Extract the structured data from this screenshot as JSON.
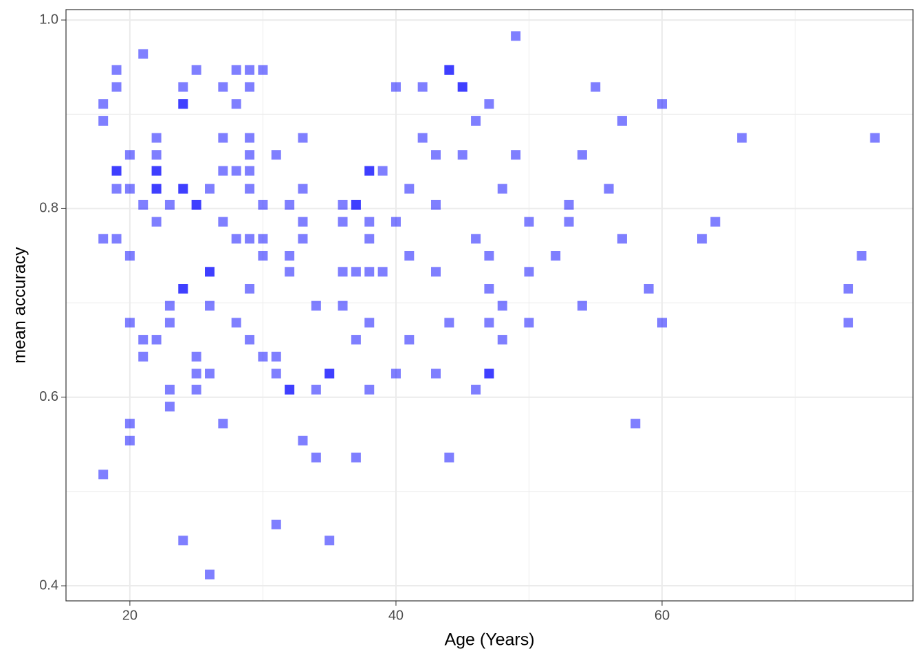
{
  "chart_data": {
    "type": "scatter",
    "x_label": "Age (Years)",
    "y_label": "mean accuracy",
    "color": "#0000ff",
    "opacity": 0.5,
    "marker": "square",
    "grid": true,
    "xlim": [
      15.2,
      78.86
    ],
    "ylim": [
      0.384,
      1.011
    ],
    "xticks": [
      20,
      40,
      60
    ],
    "yticks": [
      0.4,
      0.6,
      0.8,
      {
        "value": 1.0,
        "label": "1.0"
      }
    ],
    "x_minor_grid": [
      30,
      50,
      70
    ],
    "y_minor_grid": [
      0.5,
      0.7,
      0.9
    ],
    "x": [
      18,
      18,
      18,
      18,
      19,
      19,
      19,
      19,
      19,
      19,
      20,
      20,
      20,
      20,
      20,
      20,
      21,
      21,
      21,
      21,
      22,
      22,
      22,
      22,
      22,
      22,
      22,
      22,
      23,
      23,
      23,
      23,
      23,
      24,
      24,
      24,
      24,
      24,
      24,
      24,
      24,
      25,
      25,
      25,
      25,
      25,
      25,
      26,
      26,
      26,
      26,
      26,
      26,
      27,
      27,
      27,
      27,
      27,
      28,
      28,
      28,
      28,
      28,
      29,
      29,
      29,
      29,
      29,
      29,
      29,
      29,
      29,
      30,
      30,
      30,
      30,
      30,
      31,
      31,
      31,
      31,
      32,
      32,
      32,
      32,
      32,
      33,
      33,
      33,
      33,
      33,
      34,
      34,
      34,
      35,
      35,
      35,
      36,
      36,
      36,
      36,
      37,
      37,
      37,
      37,
      37,
      38,
      38,
      38,
      38,
      38,
      38,
      38,
      39,
      39,
      40,
      40,
      40,
      41,
      41,
      41,
      42,
      42,
      43,
      43,
      43,
      43,
      44,
      44,
      44,
      44,
      45,
      45,
      45,
      46,
      46,
      46,
      47,
      47,
      47,
      47,
      47,
      47,
      48,
      48,
      48,
      49,
      49,
      50,
      50,
      50,
      52,
      53,
      53,
      54,
      54,
      55,
      56,
      57,
      57,
      58,
      59,
      60,
      60,
      63,
      64,
      66,
      74,
      74,
      75,
      76
    ],
    "values": [
      0.911,
      0.893,
      0.768,
      0.518,
      0.947,
      0.929,
      0.84,
      0.84,
      0.821,
      0.768,
      0.857,
      0.821,
      0.75,
      0.679,
      0.572,
      0.554,
      0.964,
      0.804,
      0.661,
      0.643,
      0.875,
      0.857,
      0.84,
      0.84,
      0.821,
      0.821,
      0.786,
      0.661,
      0.804,
      0.697,
      0.679,
      0.608,
      0.59,
      0.929,
      0.911,
      0.911,
      0.821,
      0.821,
      0.715,
      0.715,
      0.448,
      0.947,
      0.804,
      0.804,
      0.643,
      0.625,
      0.608,
      0.821,
      0.733,
      0.733,
      0.697,
      0.625,
      0.412,
      0.929,
      0.875,
      0.84,
      0.786,
      0.572,
      0.947,
      0.911,
      0.84,
      0.768,
      0.679,
      0.947,
      0.929,
      0.875,
      0.857,
      0.84,
      0.821,
      0.768,
      0.715,
      0.661,
      0.947,
      0.804,
      0.768,
      0.75,
      0.643,
      0.857,
      0.643,
      0.625,
      0.465,
      0.804,
      0.75,
      0.733,
      0.608,
      0.608,
      0.875,
      0.821,
      0.786,
      0.768,
      0.554,
      0.697,
      0.608,
      0.536,
      0.625,
      0.625,
      0.448,
      0.804,
      0.786,
      0.733,
      0.697,
      0.804,
      0.804,
      0.733,
      0.661,
      0.536,
      0.84,
      0.84,
      0.786,
      0.768,
      0.733,
      0.679,
      0.608,
      0.84,
      0.733,
      0.929,
      0.786,
      0.625,
      0.821,
      0.75,
      0.661,
      0.929,
      0.875,
      0.857,
      0.804,
      0.733,
      0.625,
      0.947,
      0.947,
      0.679,
      0.536,
      0.929,
      0.929,
      0.857,
      0.893,
      0.768,
      0.608,
      0.911,
      0.75,
      0.715,
      0.679,
      0.625,
      0.625,
      0.821,
      0.697,
      0.661,
      0.983,
      0.857,
      0.786,
      0.733,
      0.679,
      0.75,
      0.804,
      0.786,
      0.857,
      0.697,
      0.929,
      0.821,
      0.893,
      0.768,
      0.572,
      0.715,
      0.911,
      0.679,
      0.768,
      0.786,
      0.875,
      0.715,
      0.679,
      0.75,
      0.875
    ]
  }
}
